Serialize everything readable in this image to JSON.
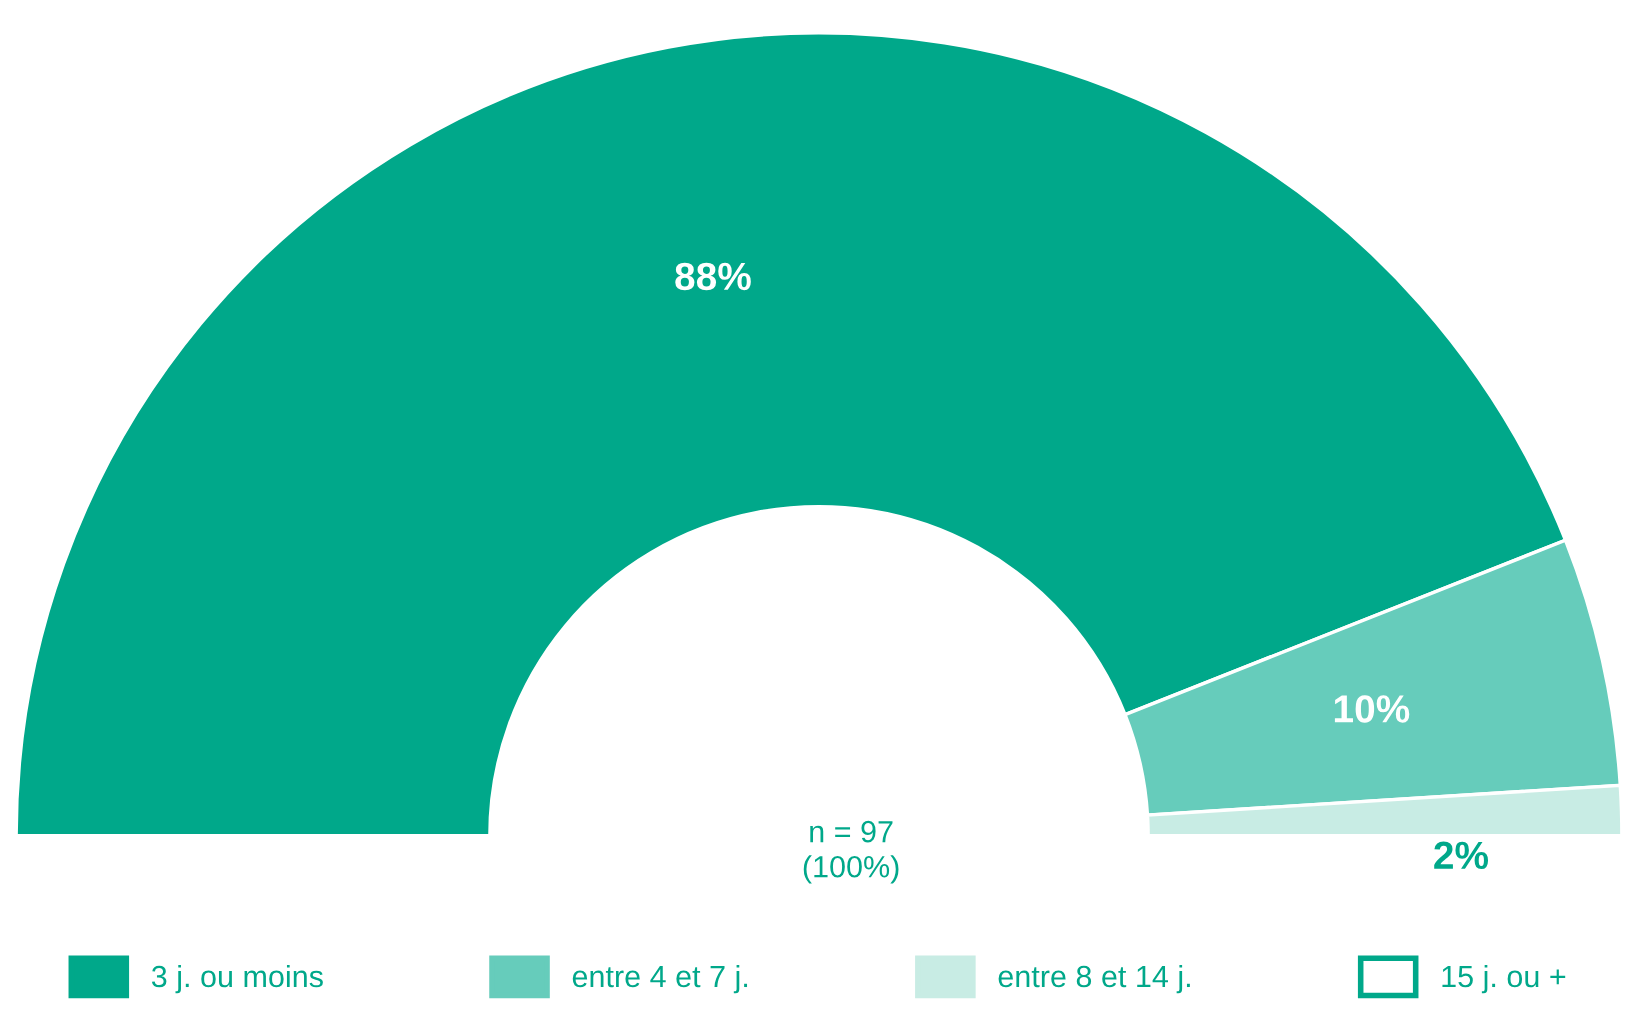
{
  "chart_data": {
    "type": "donut",
    "categories": [
      "3 j. ou moins",
      "entre 4 et 7 j.",
      "entre 8 et 14 j.",
      "15 j. ou +"
    ],
    "values": [
      88,
      10,
      2,
      0
    ],
    "colors": [
      "#00a88a",
      "#66ccbb",
      "#c8ece4",
      "#ffffff"
    ],
    "value_labels": [
      "88%",
      "10%",
      "2%",
      null
    ],
    "legend": "bottom",
    "annotations": [
      "n = 97\n(100%)"
    ]
  }
}
